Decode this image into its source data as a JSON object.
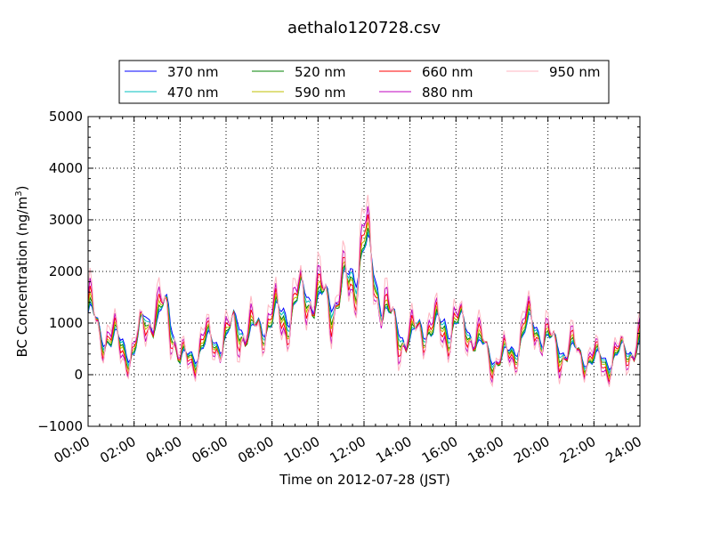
{
  "chart_data": {
    "type": "line",
    "title": "aethalo120728.csv",
    "xlabel": "Time on 2012-07-28 (JST)",
    "ylabel": "BC Concentration (ng/m",
    "ylabel_superscript": "3",
    "ylabel_suffix": ")",
    "xlim": [
      "00:00",
      "24:00"
    ],
    "ylim": [
      -1000,
      5000
    ],
    "x_ticks": [
      "00:00",
      "02:00",
      "04:00",
      "06:00",
      "08:00",
      "10:00",
      "12:00",
      "14:00",
      "16:00",
      "18:00",
      "20:00",
      "22:00",
      "24:00"
    ],
    "y_ticks": [
      "−1000",
      "0",
      "1000",
      "2000",
      "3000",
      "4000",
      "5000"
    ],
    "y_tick_values": [
      -1000,
      0,
      1000,
      2000,
      3000,
      4000,
      5000
    ],
    "grid": true,
    "legend": {
      "placement": "top-outside",
      "columns": 4
    },
    "base_x_hours": [
      0.0,
      0.5,
      1.0,
      1.5,
      2.0,
      2.5,
      3.0,
      3.5,
      4.0,
      4.5,
      5.0,
      5.5,
      6.0,
      6.5,
      7.0,
      7.5,
      8.0,
      8.5,
      9.0,
      9.5,
      10.0,
      10.5,
      11.0,
      11.5,
      12.0,
      12.5,
      13.0,
      13.5,
      14.0,
      14.5,
      15.0,
      15.5,
      16.0,
      16.5,
      17.0,
      17.5,
      18.0,
      18.5,
      19.0,
      19.5,
      20.0,
      20.5,
      21.0,
      21.5,
      22.0,
      22.5,
      23.0,
      23.5,
      24.0
    ],
    "base_y_370nm": [
      1200,
      800,
      600,
      700,
      400,
      1200,
      900,
      1400,
      300,
      400,
      500,
      600,
      700,
      1200,
      700,
      900,
      1000,
      1300,
      1400,
      1600,
      1300,
      1500,
      1700,
      2000,
      2400,
      1800,
      1200,
      1000,
      600,
      900,
      800,
      1100,
      1000,
      900,
      500,
      400,
      350,
      500,
      800,
      900,
      700,
      600,
      450,
      300,
      250,
      350,
      400,
      450,
      500
    ],
    "series": [
      {
        "name": "370 nm",
        "color": "#0000ff",
        "offset": 1.0,
        "amplitude": 0.6
      },
      {
        "name": "470 nm",
        "color": "#00bfbf",
        "offset": 0.98,
        "amplitude": 0.7
      },
      {
        "name": "520 nm",
        "color": "#008000",
        "offset": 0.96,
        "amplitude": 0.85
      },
      {
        "name": "590 nm",
        "color": "#bfbf00",
        "offset": 0.97,
        "amplitude": 0.95
      },
      {
        "name": "660 nm",
        "color": "#ff0000",
        "offset": 0.97,
        "amplitude": 1.15
      },
      {
        "name": "880 nm",
        "color": "#bf00bf",
        "offset": 0.98,
        "amplitude": 1.35
      },
      {
        "name": "950 nm",
        "color": "#ffb6c1",
        "offset": 1.02,
        "amplitude": 1.55
      }
    ]
  }
}
